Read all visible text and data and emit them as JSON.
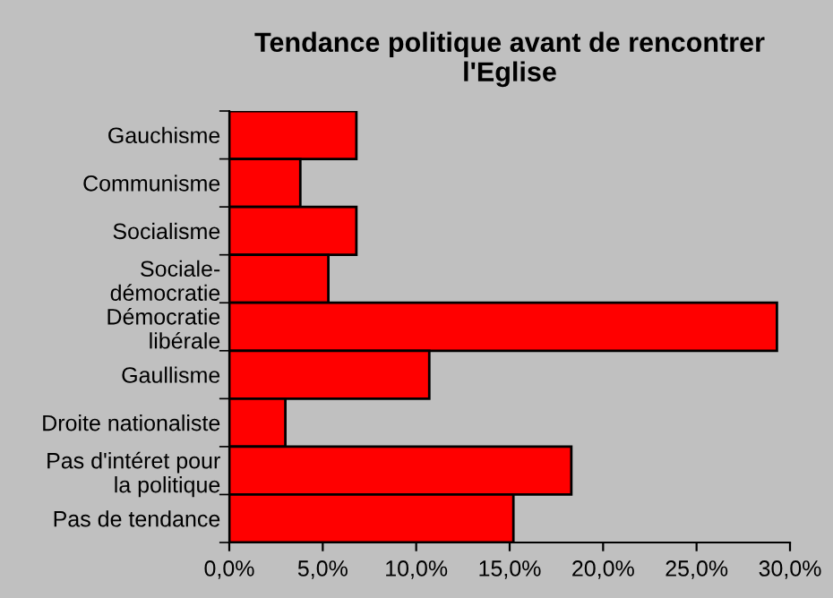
{
  "chart_data": {
    "type": "bar",
    "orientation": "horizontal",
    "title": "Tendance politique avant de rencontrer\nl'Eglise",
    "categories": [
      "Gauchisme",
      "Communisme",
      "Socialisme",
      "Sociale-\ndémocratie",
      "Démocratie\nlibérale",
      "Gaullisme",
      "Droite nationaliste",
      "Pas d'intéret pour\nla politique",
      "Pas de tendance"
    ],
    "values": [
      6.8,
      3.8,
      6.8,
      5.3,
      29.3,
      10.7,
      3.0,
      18.3,
      15.2
    ],
    "color": "#ff0000",
    "xlim": [
      0,
      30
    ],
    "xticks": [
      {
        "value": 0,
        "label": "0,0%"
      },
      {
        "value": 5,
        "label": "5,0%"
      },
      {
        "value": 10,
        "label": "10,0%"
      },
      {
        "value": 15,
        "label": "15,0%"
      },
      {
        "value": 20,
        "label": "20,0%"
      },
      {
        "value": 25,
        "label": "25,0%"
      },
      {
        "value": 30,
        "label": "30,0%"
      }
    ],
    "grid": false,
    "legend": false
  }
}
